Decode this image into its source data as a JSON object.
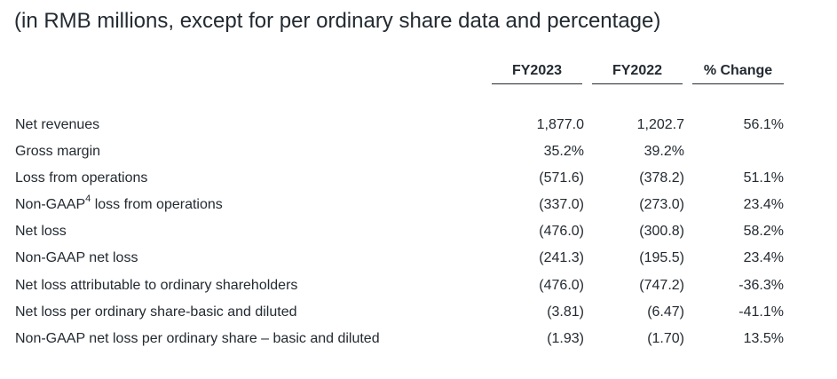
{
  "caption": "(in RMB millions, except for per ordinary share data and percentage)",
  "columns": {
    "fy2023": "FY2023",
    "fy2022": "FY2022",
    "change": "% Change"
  },
  "rows": [
    {
      "label": "Net revenues",
      "sup": "",
      "label_rest": "",
      "fy2023": "1,877.0",
      "fy2022": "1,202.7",
      "change": "56.1%"
    },
    {
      "label": "Gross margin",
      "sup": "",
      "label_rest": "",
      "fy2023": "35.2%",
      "fy2022": "39.2%",
      "change": ""
    },
    {
      "label": "Loss from operations",
      "sup": "",
      "label_rest": "",
      "fy2023": "(571.6)",
      "fy2022": "(378.2)",
      "change": "51.1%"
    },
    {
      "label": "Non-GAAP",
      "sup": "4",
      "label_rest": " loss from operations",
      "fy2023": "(337.0)",
      "fy2022": "(273.0)",
      "change": "23.4%"
    },
    {
      "label": "Net loss",
      "sup": "",
      "label_rest": "",
      "fy2023": "(476.0)",
      "fy2022": "(300.8)",
      "change": "58.2%"
    },
    {
      "label": "Non-GAAP net loss",
      "sup": "",
      "label_rest": "",
      "fy2023": "(241.3)",
      "fy2022": "(195.5)",
      "change": "23.4%"
    },
    {
      "label": "Net loss attributable to ordinary shareholders",
      "sup": "",
      "label_rest": "",
      "fy2023": "(476.0)",
      "fy2022": "(747.2)",
      "change": "-36.3%"
    },
    {
      "label": "Net loss per ordinary share-basic and diluted",
      "sup": "",
      "label_rest": "",
      "fy2023": "(3.81)",
      "fy2022": "(6.47)",
      "change": "-41.1%"
    },
    {
      "label": "Non-GAAP net loss per ordinary share – basic and diluted",
      "sup": "",
      "label_rest": "",
      "fy2023": "(1.93)",
      "fy2022": "(1.70)",
      "change": "13.5%"
    }
  ]
}
